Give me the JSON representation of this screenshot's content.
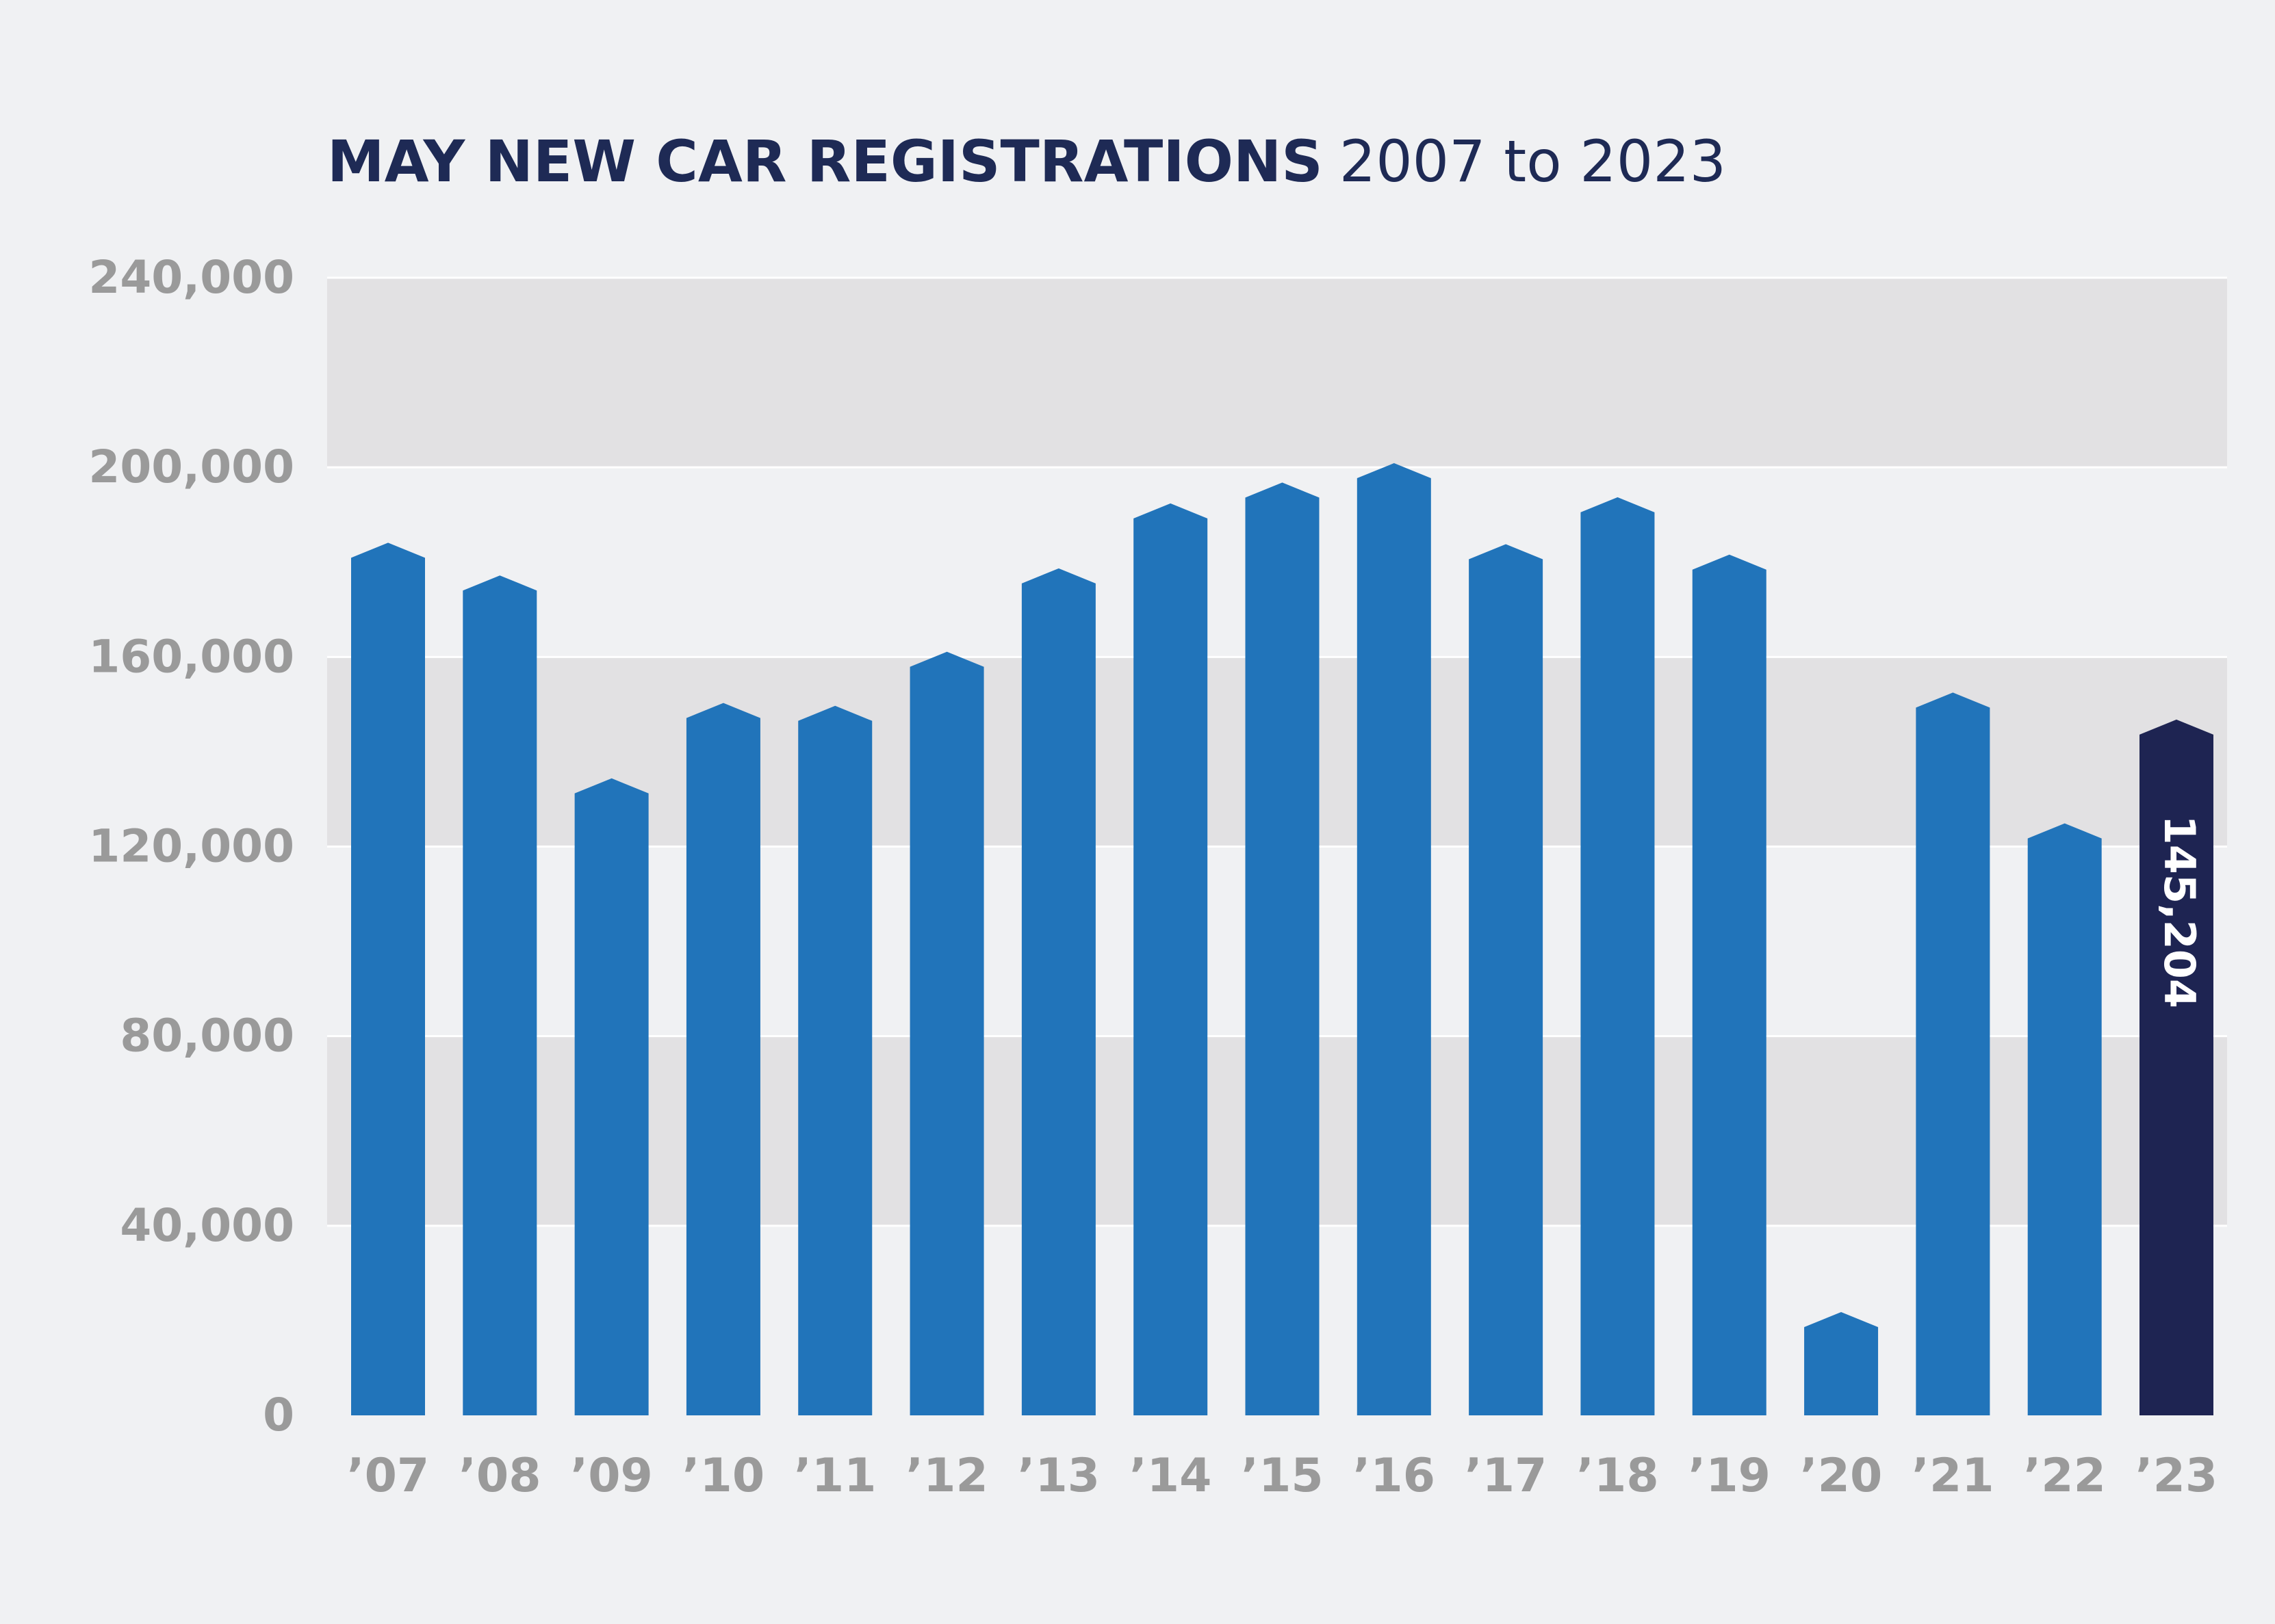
{
  "chart_data": {
    "type": "bar",
    "title": "MAY NEW CAR REGISTRATIONS",
    "subtitle": "2007 to 2023",
    "xlabel": "",
    "ylabel": "",
    "categories": [
      "’07",
      "’08",
      "’09",
      "’10",
      "’11",
      "’12",
      "’13",
      "’14",
      "’15",
      "’16",
      "’17",
      "’18",
      "’19",
      "’20",
      "’21",
      "’22",
      "’23"
    ],
    "values": [
      182500,
      175600,
      132800,
      148700,
      148100,
      159500,
      177100,
      190800,
      195200,
      199300,
      182200,
      192100,
      180000,
      20200,
      150900,
      123300,
      145204
    ],
    "ylim": [
      0,
      240000
    ],
    "yticks": [
      0,
      40000,
      80000,
      120000,
      160000,
      200000,
      240000
    ],
    "ytick_labels": [
      "0",
      "40,000",
      "80,000",
      "120,000",
      "160,000",
      "200,000",
      "240,000"
    ],
    "grid": true,
    "colors": {
      "bar": "#2174ba",
      "highlight_bar": "#1e2452",
      "title": "#1e2a55",
      "tick_label": "#9a9a9a",
      "band_dark": "#e2e1e3",
      "band_light": "#f0f1f3",
      "gridline": "#ffffff"
    },
    "highlight": {
      "index": 16,
      "label": "145,204"
    }
  }
}
